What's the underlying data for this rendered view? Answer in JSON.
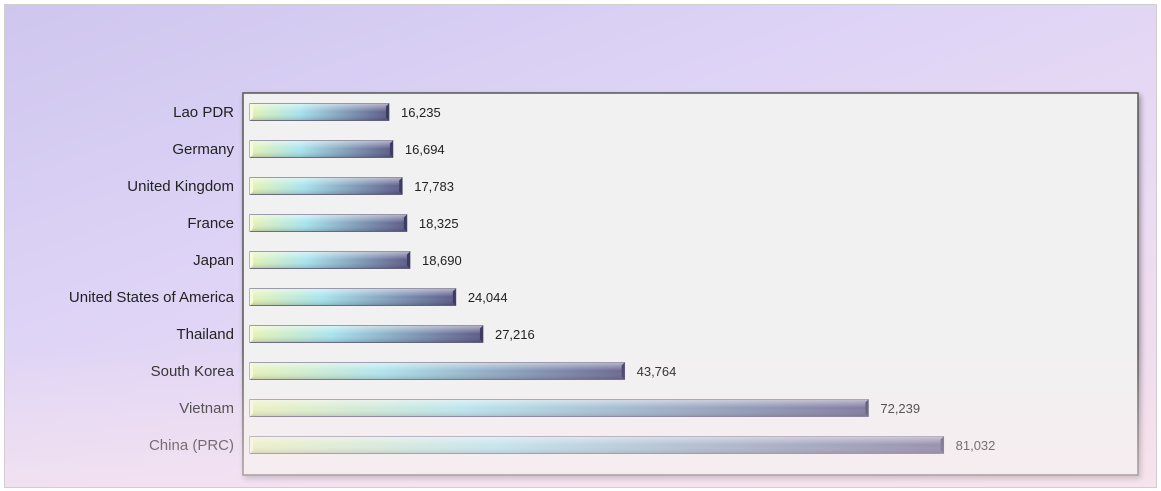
{
  "chart_data": {
    "type": "bar",
    "orientation": "horizontal",
    "categories": [
      "Lao PDR",
      "Germany",
      "United Kingdom",
      "France",
      "Japan",
      "United States of America",
      "Thailand",
      "South Korea",
      "Vietnam",
      "China (PRC)"
    ],
    "values": [
      16235,
      16694,
      17783,
      18325,
      18690,
      24044,
      27216,
      43764,
      72239,
      81032
    ],
    "value_labels": [
      "16,235",
      "16,694",
      "17,783",
      "18,325",
      "18,690",
      "24,044",
      "27,216",
      "43,764",
      "72,239",
      "81,032"
    ],
    "xlim": [
      0,
      100000
    ],
    "grid": false,
    "legend": "none",
    "colors": {
      "bar_start": "#e6f4b4",
      "bar_mid": "#a8e4ee",
      "bar_end": "#5c5988",
      "plot_bg": "#f1f1f1",
      "plot_border": "#555555"
    }
  }
}
